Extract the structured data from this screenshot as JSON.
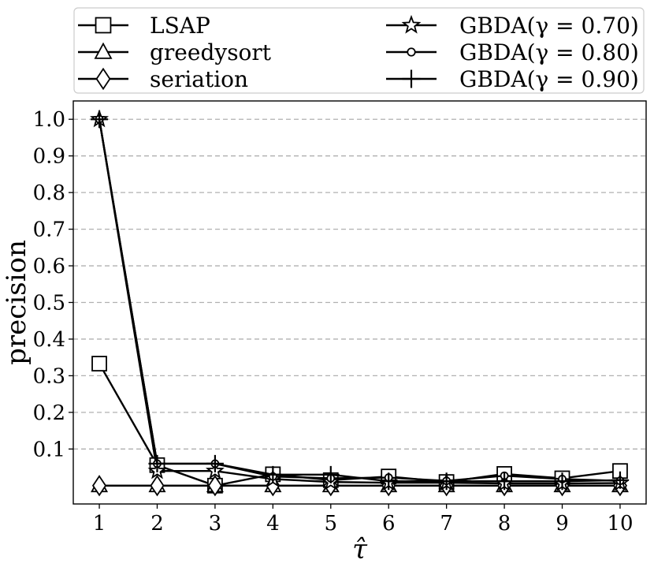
{
  "chart_data": {
    "type": "line",
    "xlabel": "τ̂",
    "ylabel": "precision",
    "x": [
      1,
      2,
      3,
      4,
      5,
      6,
      7,
      8,
      9,
      10
    ],
    "xlim": [
      0.55,
      10.45
    ],
    "ylim": [
      -0.05,
      1.05
    ],
    "x_ticks": [
      "1",
      "2",
      "3",
      "4",
      "5",
      "6",
      "7",
      "8",
      "9",
      "10"
    ],
    "y_ticks": [
      "0.1",
      "0.2",
      "0.3",
      "0.4",
      "0.5",
      "0.6",
      "0.7",
      "0.8",
      "0.9",
      "1.0"
    ],
    "grid": "horizontal dashed",
    "legend_position": "above plot, two columns",
    "series": [
      {
        "name": "LSAP",
        "marker": "square",
        "values": [
          0.333,
          0.056,
          0.0,
          0.031,
          0.015,
          0.025,
          0.01,
          0.032,
          0.02,
          0.04
        ]
      },
      {
        "name": "greedysort",
        "marker": "triangle",
        "values": [
          0.0,
          0.0,
          0.0,
          0.0,
          0.0,
          0.0,
          0.0,
          0.0,
          0.0,
          0.0
        ]
      },
      {
        "name": "seriation",
        "marker": "diamond",
        "values": [
          0.0,
          0.0,
          0.0,
          0.0,
          0.0,
          0.0,
          0.0,
          0.0,
          0.0,
          0.0
        ]
      },
      {
        "name": "GBDA(γ = 0.70)",
        "marker": "star",
        "values": [
          1.0,
          0.04,
          0.04,
          0.018,
          0.01,
          0.008,
          0.008,
          0.006,
          0.006,
          0.007
        ]
      },
      {
        "name": "GBDA(γ = 0.80)",
        "marker": "circle",
        "values": [
          1.0,
          0.06,
          0.06,
          0.025,
          0.02,
          0.022,
          0.013,
          0.027,
          0.018,
          0.013
        ]
      },
      {
        "name": "GBDA(γ = 0.90)",
        "marker": "plus",
        "values": [
          1.0,
          0.06,
          0.06,
          0.03,
          0.03,
          0.012,
          0.012,
          0.012,
          0.012,
          0.015
        ]
      }
    ]
  }
}
